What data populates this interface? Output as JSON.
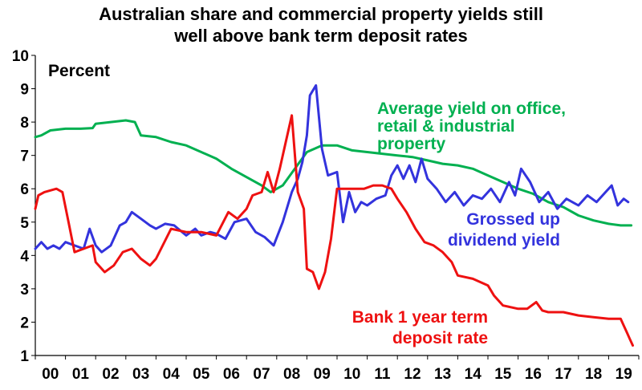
{
  "chart_data": {
    "type": "line",
    "title_line1": "Australian share and commercial property yields still",
    "title_line2": "well above bank term deposit rates",
    "unit_label": "Percent",
    "xlim": [
      2000,
      2020
    ],
    "ylim": [
      1,
      10
    ],
    "x_ticks": [
      "00",
      "01",
      "02",
      "03",
      "04",
      "05",
      "06",
      "07",
      "08",
      "09",
      "10",
      "11",
      "12",
      "13",
      "14",
      "15",
      "16",
      "17",
      "18",
      "19"
    ],
    "y_ticks": [
      "1",
      "2",
      "3",
      "4",
      "5",
      "6",
      "7",
      "8",
      "9",
      "10"
    ],
    "grid": false,
    "legend": "inline annotations",
    "series": [
      {
        "name": "Average yield on office, retail & industrial property",
        "label_lines": [
          "Average yield on office,",
          "retail & industrial",
          "property"
        ],
        "color": "#00b050",
        "x": [
          2000.0,
          2000.2,
          2000.5,
          2001.0,
          2001.5,
          2001.9,
          2002.0,
          2002.5,
          2003.0,
          2003.3,
          2003.5,
          2004.0,
          2004.5,
          2005.0,
          2005.5,
          2006.0,
          2006.5,
          2007.0,
          2007.5,
          2007.8,
          2008.2,
          2008.6,
          2009.0,
          2009.5,
          2010.0,
          2010.5,
          2011.0,
          2011.5,
          2012.0,
          2012.5,
          2013.0,
          2013.5,
          2014.0,
          2014.5,
          2015.0,
          2015.5,
          2016.0,
          2016.5,
          2017.0,
          2017.5,
          2018.0,
          2018.5,
          2019.0,
          2019.4,
          2019.75
        ],
        "y": [
          7.55,
          7.6,
          7.75,
          7.8,
          7.8,
          7.82,
          7.95,
          8.0,
          8.05,
          8.0,
          7.6,
          7.55,
          7.4,
          7.3,
          7.1,
          6.9,
          6.6,
          6.35,
          6.1,
          5.9,
          6.1,
          6.6,
          7.1,
          7.3,
          7.3,
          7.15,
          7.1,
          7.05,
          7.0,
          6.95,
          6.85,
          6.75,
          6.7,
          6.6,
          6.4,
          6.2,
          6.0,
          5.85,
          5.6,
          5.45,
          5.2,
          5.05,
          4.95,
          4.9,
          4.9
        ]
      },
      {
        "name": "Grossed up dividend yield",
        "label_lines": [
          "Grossed up",
          "dividend yield"
        ],
        "color": "#3333dd",
        "x": [
          2000.0,
          2000.2,
          2000.4,
          2000.6,
          2000.8,
          2001.0,
          2001.3,
          2001.6,
          2001.8,
          2002.0,
          2002.2,
          2002.5,
          2002.8,
          2003.0,
          2003.2,
          2003.5,
          2003.8,
          2004.0,
          2004.3,
          2004.6,
          2005.0,
          2005.3,
          2005.5,
          2005.8,
          2006.0,
          2006.3,
          2006.6,
          2007.0,
          2007.3,
          2007.6,
          2007.9,
          2008.2,
          2008.5,
          2008.7,
          2008.85,
          2009.0,
          2009.1,
          2009.3,
          2009.5,
          2009.7,
          2010.0,
          2010.2,
          2010.4,
          2010.6,
          2010.8,
          2011.0,
          2011.3,
          2011.6,
          2011.8,
          2012.0,
          2012.2,
          2012.4,
          2012.6,
          2012.8,
          2013.0,
          2013.3,
          2013.6,
          2013.9,
          2014.2,
          2014.5,
          2014.8,
          2015.1,
          2015.4,
          2015.7,
          2015.9,
          2016.1,
          2016.4,
          2016.7,
          2017.0,
          2017.3,
          2017.6,
          2018.0,
          2018.3,
          2018.6,
          2018.9,
          2019.1,
          2019.3,
          2019.5,
          2019.65
        ],
        "y": [
          4.2,
          4.4,
          4.2,
          4.3,
          4.2,
          4.4,
          4.3,
          4.2,
          4.8,
          4.3,
          4.1,
          4.3,
          4.9,
          5.0,
          5.3,
          5.1,
          4.9,
          4.8,
          4.95,
          4.9,
          4.6,
          4.8,
          4.6,
          4.7,
          4.65,
          4.5,
          5.0,
          5.1,
          4.7,
          4.55,
          4.3,
          5.0,
          5.9,
          6.3,
          6.8,
          7.6,
          8.8,
          9.1,
          7.2,
          6.4,
          6.5,
          5.0,
          5.9,
          5.3,
          5.6,
          5.5,
          5.7,
          5.8,
          6.4,
          6.7,
          6.3,
          6.7,
          6.2,
          6.9,
          6.3,
          6.0,
          5.6,
          5.9,
          5.5,
          5.8,
          5.7,
          6.0,
          5.6,
          6.2,
          5.8,
          6.6,
          6.2,
          5.6,
          5.9,
          5.4,
          5.7,
          5.5,
          5.8,
          5.6,
          5.9,
          6.1,
          5.5,
          5.7,
          5.6
        ]
      },
      {
        "name": "Bank 1 year term deposit rate",
        "label_lines": [
          "Bank 1 year term",
          "deposit rate"
        ],
        "color": "#ee1111",
        "x": [
          2000.0,
          2000.1,
          2000.3,
          2000.5,
          2000.7,
          2000.9,
          2001.1,
          2001.3,
          2001.6,
          2001.9,
          2002.0,
          2002.3,
          2002.6,
          2002.9,
          2003.2,
          2003.5,
          2003.8,
          2004.0,
          2004.5,
          2005.0,
          2005.5,
          2006.0,
          2006.4,
          2006.7,
          2007.0,
          2007.2,
          2007.5,
          2007.7,
          2007.9,
          2008.1,
          2008.3,
          2008.5,
          2008.7,
          2008.9,
          2009.0,
          2009.2,
          2009.4,
          2009.6,
          2009.8,
          2010.0,
          2010.3,
          2010.6,
          2010.9,
          2011.2,
          2011.5,
          2011.8,
          2012.0,
          2012.3,
          2012.6,
          2012.9,
          2013.2,
          2013.5,
          2013.8,
          2014.0,
          2014.5,
          2015.0,
          2015.2,
          2015.5,
          2016.0,
          2016.3,
          2016.6,
          2016.8,
          2017.0,
          2017.5,
          2018.0,
          2018.5,
          2019.0,
          2019.4,
          2019.5,
          2019.6,
          2019.7,
          2019.8
        ],
        "y": [
          5.4,
          5.8,
          5.9,
          5.95,
          6.0,
          5.9,
          5.0,
          4.1,
          4.2,
          4.3,
          3.8,
          3.5,
          3.7,
          4.1,
          4.2,
          3.9,
          3.7,
          3.9,
          4.8,
          4.7,
          4.7,
          4.6,
          5.3,
          5.1,
          5.4,
          5.8,
          5.9,
          6.5,
          5.9,
          6.6,
          7.4,
          8.2,
          5.9,
          5.4,
          3.6,
          3.5,
          3.0,
          3.5,
          4.5,
          6.0,
          6.0,
          6.0,
          6.0,
          6.1,
          6.1,
          6.0,
          5.7,
          5.3,
          4.8,
          4.4,
          4.3,
          4.1,
          3.8,
          3.4,
          3.3,
          3.1,
          2.8,
          2.5,
          2.4,
          2.4,
          2.6,
          2.35,
          2.3,
          2.3,
          2.2,
          2.15,
          2.1,
          2.1,
          1.9,
          1.7,
          1.5,
          1.3
        ]
      }
    ]
  }
}
